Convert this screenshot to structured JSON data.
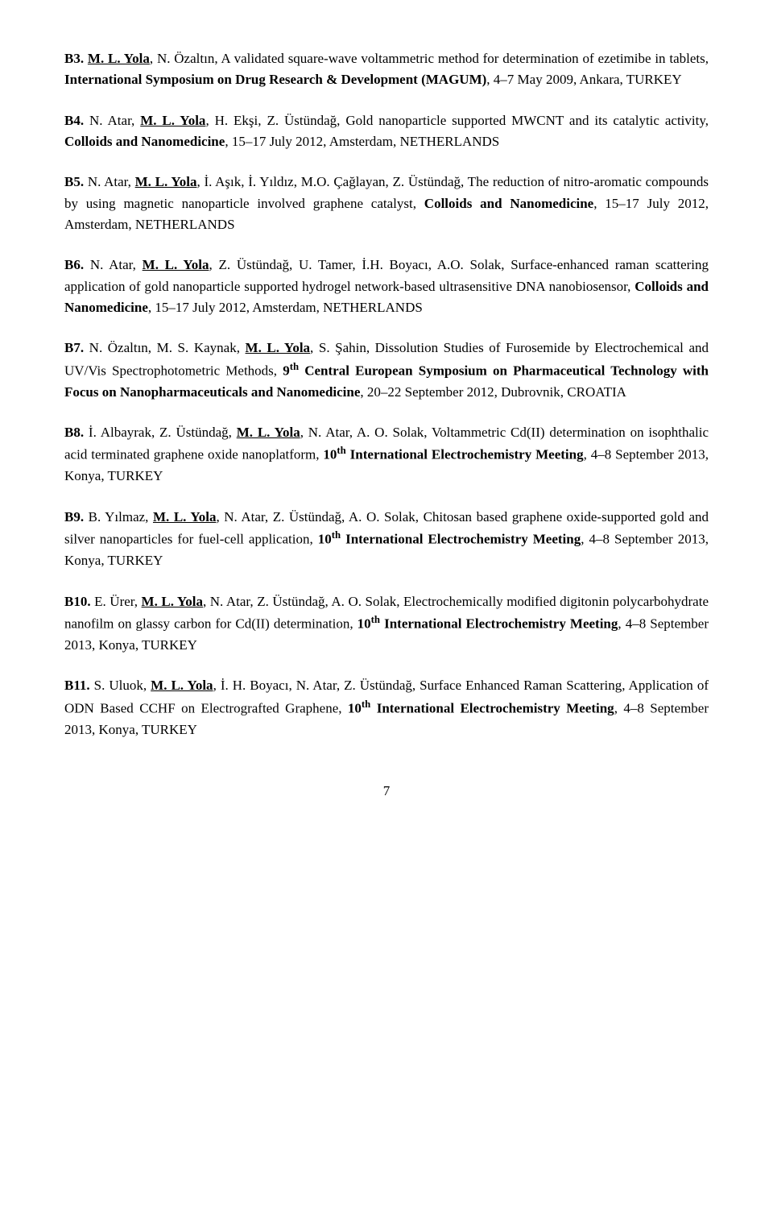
{
  "entries": {
    "b3": {
      "id": "B3.",
      "author_u": "M. L. Yola",
      "text1": ", N. Özaltın, A validated square-wave voltammetric method for determination of ezetimibe in tablets, ",
      "venue": "International Symposium on Drug Research & Development (MAGUM)",
      "text2": ", 4–7 May 2009, Ankara, TURKEY"
    },
    "b4": {
      "id": "B4.",
      "text1": " N. Atar, ",
      "author_u": "M. L. Yola",
      "text2": ", H. Ekşi, Z. Üstündağ, Gold nanoparticle supported MWCNT and its catalytic activity, ",
      "venue": "Colloids and Nanomedicine",
      "text3": ", 15–17 July 2012, Amsterdam, NETHERLANDS"
    },
    "b5": {
      "id": "B5.",
      "text1": " N. Atar, ",
      "author_u": "M. L. Yola",
      "text2": ", İ. Aşık, İ. Yıldız, M.O. Çağlayan, Z. Üstündağ, The reduction of nitro-aromatic compounds by using magnetic nanoparticle involved graphene catalyst, ",
      "venue": "Colloids and Nanomedicine",
      "text3": ", 15–17 July 2012, Amsterdam, NETHERLANDS"
    },
    "b6": {
      "id": "B6.",
      "text1": " N. Atar, ",
      "author_u": "M. L. Yola",
      "text2": ", Z. Üstündağ, U. Tamer, İ.H. Boyacı, A.O. Solak, Surface-enhanced raman scattering application of gold nanoparticle supported hydrogel network-based ultrasensitive DNA nanobiosensor, ",
      "venue": "Colloids and Nanomedicine",
      "text3": ", 15–17 July 2012, Amsterdam, NETHERLANDS"
    },
    "b7": {
      "id": "B7.",
      "text1": " N. Özaltın, M. S. Kaynak, ",
      "author_u": "M. L. Yola",
      "text2": ", S. Şahin, Dissolution Studies of Furosemide by Electrochemical and UV/Vis Spectrophotometric Methods, ",
      "ord": "9",
      "ord_sup": "th",
      "venue": " Central European Symposium on Pharmaceutical Technology with Focus on Nanopharmaceuticals and Nanomedicine",
      "text3": ", 20–22 September 2012, Dubrovnik, CROATIA"
    },
    "b8": {
      "id": "B8.",
      "text1": " İ. Albayrak, Z. Üstündağ, ",
      "author_u": "M. L. Yola",
      "text2": ", N. Atar, A. O. Solak, Voltammetric Cd(II) determination on isophthalic acid terminated graphene oxide nanoplatform, ",
      "ord": "10",
      "ord_sup": "th",
      "venue": " International Electrochemistry Meeting",
      "text3": ",  4–8 September 2013, Konya, TURKEY"
    },
    "b9": {
      "id": "B9.",
      "text1": " B. Yılmaz, ",
      "author_u": "M. L. Yola",
      "text2": ", N. Atar, Z. Üstündağ, A. O. Solak, Chitosan based graphene oxide-supported gold and silver nanoparticles for fuel-cell application, ",
      "ord": "10",
      "ord_sup": "th",
      "venue": " International Electrochemistry Meeting",
      "text3": ", 4–8 September 2013, Konya, TURKEY"
    },
    "b10": {
      "id": "B10.",
      "text1": " E. Ürer, ",
      "author_u": "M. L. Yola",
      "text2": ", N. Atar, Z. Üstündağ, A. O. Solak, Electrochemically modified digitonin polycarbohydrate nanofilm on glassy carbon for Cd(II) determination, ",
      "ord": "10",
      "ord_sup": "th",
      "venue": " International Electrochemistry Meeting",
      "text3": ", 4–8 September 2013, Konya, TURKEY"
    },
    "b11": {
      "id": "B11.",
      "text1": " S. Uluok, ",
      "author_u": "M. L. Yola",
      "text2": ", İ. H. Boyacı, N. Atar, Z. Üstündağ, Surface Enhanced Raman Scattering, Application of ODN Based CCHF on Electrografted Graphene, ",
      "ord": "10",
      "ord_sup": "th",
      "venue": " International Electrochemistry Meeting",
      "text3": ", 4–8 September 2013, Konya, TURKEY"
    }
  },
  "page_number": "7"
}
